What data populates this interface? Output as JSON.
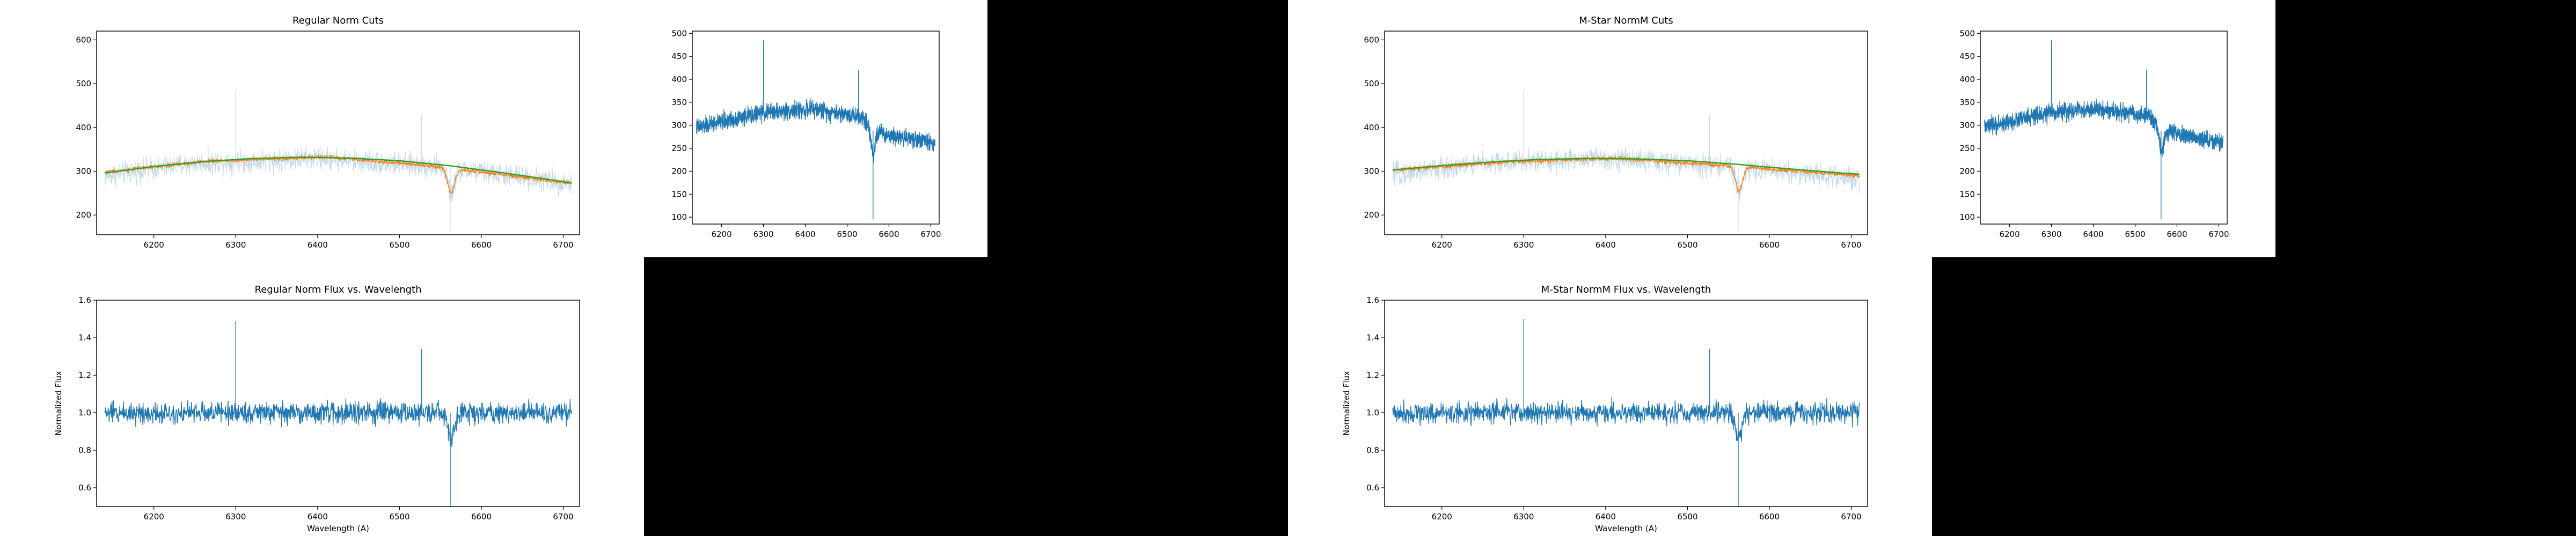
{
  "figure": {
    "background": "#000000",
    "plot_background": "#ffffff",
    "colors": {
      "raw": "#c6dbea",
      "spectrum": "#1f77b4",
      "cut_points": "#ff7f0e",
      "fit": "#2ca02c"
    }
  },
  "chart_data": [
    {
      "id": "regular-cuts",
      "type": "line",
      "title": "Regular Norm Cuts",
      "xlabel": "",
      "ylabel": "",
      "xlim": [
        6130,
        6720
      ],
      "ylim": [
        155,
        620
      ],
      "xticks": [
        6200,
        6300,
        6400,
        6500,
        6600,
        6700
      ],
      "yticks": [
        200,
        300,
        400,
        500,
        600
      ],
      "grid": false,
      "series": [
        {
          "role": "raw",
          "style": "line",
          "color": "#c6dbea",
          "x_range": [
            6140,
            6710
          ],
          "baseline": [
            [
              6140,
              290
            ],
            [
              6250,
              318
            ],
            [
              6400,
              330
            ],
            [
              6550,
              310
            ],
            [
              6710,
              272
            ]
          ],
          "noise": 38,
          "spikes": [
            [
              6300,
              485
            ],
            [
              6527,
              430
            ],
            [
              6562,
              165
            ]
          ]
        },
        {
          "role": "cut_points",
          "style": "line",
          "color": "#ff7f0e",
          "x_range": [
            6140,
            6710
          ],
          "baseline": [
            [
              6140,
              298
            ],
            [
              6260,
              322
            ],
            [
              6410,
              333
            ],
            [
              6540,
              312
            ],
            [
              6710,
              273
            ]
          ],
          "noise": 7,
          "spikes": []
        },
        {
          "role": "fit",
          "style": "line",
          "color": "#2ca02c",
          "x": [
            6140,
            6200,
            6260,
            6320,
            6380,
            6440,
            6500,
            6560,
            6620,
            6680,
            6710
          ],
          "y": [
            296,
            311,
            322,
            329,
            332,
            330,
            324,
            313,
            298,
            282,
            273
          ]
        }
      ]
    },
    {
      "id": "regular-spectrum",
      "type": "line",
      "title": "",
      "xlabel": "",
      "ylabel": "",
      "xlim": [
        6130,
        6720
      ],
      "ylim": [
        85,
        505
      ],
      "xticks": [
        6200,
        6300,
        6400,
        6500,
        6600,
        6700
      ],
      "yticks": [
        100,
        150,
        200,
        250,
        300,
        350,
        400,
        450,
        500
      ],
      "grid": false,
      "series": [
        {
          "role": "spectrum",
          "style": "line",
          "color": "#1f77b4",
          "x_range": [
            6140,
            6710
          ],
          "baseline": [
            [
              6140,
              295
            ],
            [
              6300,
              328
            ],
            [
              6420,
              335
            ],
            [
              6540,
              318
            ],
            [
              6555,
              290
            ],
            [
              6600,
              280
            ],
            [
              6710,
              262
            ]
          ],
          "noise": 28,
          "spikes": [
            [
              6300,
              485
            ],
            [
              6527,
              420
            ],
            [
              6562,
              95
            ]
          ]
        }
      ]
    },
    {
      "id": "mstar-cuts",
      "type": "line",
      "title": "M-Star NormM Cuts",
      "xlabel": "",
      "ylabel": "",
      "xlim": [
        6130,
        6720
      ],
      "ylim": [
        155,
        620
      ],
      "xticks": [
        6200,
        6300,
        6400,
        6500,
        6600,
        6700
      ],
      "yticks": [
        200,
        300,
        400,
        500,
        600
      ],
      "grid": false,
      "series": [
        {
          "role": "raw",
          "style": "line",
          "color": "#c6dbea",
          "x_range": [
            6140,
            6710
          ],
          "baseline": [
            [
              6140,
              292
            ],
            [
              6250,
              318
            ],
            [
              6400,
              330
            ],
            [
              6550,
              312
            ],
            [
              6710,
              282
            ]
          ],
          "noise": 38,
          "spikes": [
            [
              6300,
              485
            ],
            [
              6527,
              430
            ],
            [
              6562,
              165
            ]
          ]
        },
        {
          "role": "cut_points",
          "style": "line",
          "color": "#ff7f0e",
          "x_range": [
            6140,
            6710
          ],
          "baseline": [
            [
              6140,
              302
            ],
            [
              6260,
              320
            ],
            [
              6410,
              330
            ],
            [
              6540,
              314
            ],
            [
              6710,
              290
            ]
          ],
          "noise": 8,
          "spikes": []
        },
        {
          "role": "fit",
          "style": "line",
          "color": "#2ca02c",
          "x": [
            6140,
            6200,
            6260,
            6320,
            6380,
            6440,
            6500,
            6560,
            6620,
            6680,
            6710
          ],
          "y": [
            303,
            313,
            321,
            327,
            329,
            328,
            324,
            316,
            306,
            297,
            293
          ]
        }
      ]
    },
    {
      "id": "mstar-spectrum",
      "type": "line",
      "title": "",
      "xlabel": "",
      "ylabel": "",
      "xlim": [
        6130,
        6720
      ],
      "ylim": [
        85,
        505
      ],
      "xticks": [
        6200,
        6300,
        6400,
        6500,
        6600,
        6700
      ],
      "yticks": [
        100,
        150,
        200,
        250,
        300,
        350,
        400,
        450,
        500
      ],
      "grid": false,
      "series": [
        {
          "role": "spectrum",
          "style": "line",
          "color": "#1f77b4",
          "x_range": [
            6140,
            6710
          ],
          "baseline": [
            [
              6140,
              295
            ],
            [
              6300,
              328
            ],
            [
              6420,
              335
            ],
            [
              6540,
              318
            ],
            [
              6555,
              290
            ],
            [
              6600,
              280
            ],
            [
              6710,
              262
            ]
          ],
          "noise": 28,
          "spikes": [
            [
              6300,
              485
            ],
            [
              6527,
              420
            ],
            [
              6562,
              95
            ]
          ]
        }
      ]
    },
    {
      "id": "regular-flux",
      "type": "line",
      "title": "Regular Norm Flux vs. Wavelength",
      "xlabel": "Wavelength (A)",
      "ylabel": "Normalized Flux",
      "xlim": [
        6130,
        6720
      ],
      "ylim": [
        0.5,
        1.6
      ],
      "xticks": [
        6200,
        6300,
        6400,
        6500,
        6600,
        6700
      ],
      "yticks": [
        0.6,
        0.8,
        1.0,
        1.2,
        1.4,
        1.6
      ],
      "grid": false,
      "series": [
        {
          "role": "spectrum",
          "style": "line",
          "color": "#1f77b4",
          "x_range": [
            6140,
            6710
          ],
          "baseline": [
            [
              6140,
              1.0
            ],
            [
              6710,
              1.0
            ]
          ],
          "noise": 0.085,
          "spikes": [
            [
              6300,
              1.49
            ],
            [
              6527,
              1.34
            ],
            [
              6562,
              0.5
            ]
          ]
        }
      ]
    },
    {
      "id": "mstar-flux",
      "type": "line",
      "title": "M-Star NormM Flux vs. Wavelength",
      "xlabel": "Wavelength (A)",
      "ylabel": "Normalized Flux",
      "xlim": [
        6130,
        6720
      ],
      "ylim": [
        0.5,
        1.6
      ],
      "xticks": [
        6200,
        6300,
        6400,
        6500,
        6600,
        6700
      ],
      "yticks": [
        0.6,
        0.8,
        1.0,
        1.2,
        1.4,
        1.6
      ],
      "grid": false,
      "series": [
        {
          "role": "spectrum",
          "style": "line",
          "color": "#1f77b4",
          "x_range": [
            6140,
            6710
          ],
          "baseline": [
            [
              6140,
              1.0
            ],
            [
              6710,
              1.0
            ]
          ],
          "noise": 0.085,
          "spikes": [
            [
              6300,
              1.5
            ],
            [
              6527,
              1.34
            ],
            [
              6562,
              0.5
            ]
          ]
        }
      ]
    }
  ]
}
